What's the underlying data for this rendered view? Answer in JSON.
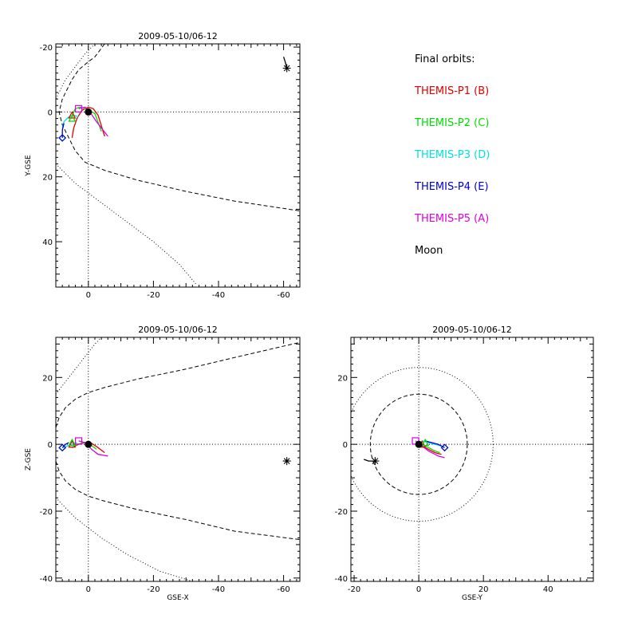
{
  "legend": {
    "title": "Final orbits:",
    "items": [
      {
        "label": "THEMIS-P1 (B)",
        "color": "#e00000"
      },
      {
        "label": "THEMIS-P2 (C)",
        "color": "#00dd00"
      },
      {
        "label": "THEMIS-P3 (D)",
        "color": "#00e0e0"
      },
      {
        "label": "THEMIS-P4 (E)",
        "color": "#0000cc"
      },
      {
        "label": "THEMIS-P5 (A)",
        "color": "#dd00dd"
      },
      {
        "label": "Moon",
        "color": "#000000"
      }
    ]
  },
  "chart_data": [
    {
      "id": "xy",
      "type": "line",
      "title": "2009-05-10/06-12",
      "xlabel": "",
      "ylabel": "Y-GSE",
      "xlim": [
        10,
        -65
      ],
      "ylim": [
        54,
        -21
      ],
      "xticks": [
        0,
        -20,
        -40,
        -60
      ],
      "yticks": [
        -20,
        0,
        20,
        40
      ],
      "origin_lines": true,
      "boundaries": [
        {
          "style": "dashed",
          "points": [
            [
              -5,
              -21
            ],
            [
              -2,
              -17
            ],
            [
              0,
              -15.5
            ],
            [
              3,
              -13
            ],
            [
              5,
              -10
            ],
            [
              7,
              -6
            ],
            [
              8,
              -4
            ],
            [
              9,
              0
            ],
            [
              8,
              4
            ],
            [
              6,
              8
            ],
            [
              4,
              12
            ],
            [
              1,
              15.5
            ],
            [
              -5,
              18
            ],
            [
              -15,
              21
            ],
            [
              -30,
              24.5
            ],
            [
              -45,
              27.5
            ],
            [
              -65,
              30.5
            ]
          ]
        },
        {
          "style": "dotted",
          "points": [
            [
              -2,
              -21
            ],
            [
              1,
              -18
            ],
            [
              4,
              -14
            ],
            [
              7,
              -10
            ],
            [
              9,
              -6
            ],
            [
              10,
              -4
            ]
          ]
        },
        {
          "style": "dotted",
          "points": [
            [
              10,
              16
            ],
            [
              4,
              22
            ],
            [
              -4,
              28
            ],
            [
              -12,
              34
            ],
            [
              -20,
              40
            ],
            [
              -28,
              47
            ],
            [
              -33,
              53
            ]
          ]
        }
      ],
      "orbits": [
        {
          "series": "THEMIS-P1 (B)",
          "color": "#e00000",
          "points": [
            [
              5,
              8
            ],
            [
              4.5,
              5
            ],
            [
              3.5,
              2
            ],
            [
              2,
              -0.5
            ],
            [
              0,
              -1.5
            ],
            [
              -1.5,
              -1
            ],
            [
              -3,
              1
            ],
            [
              -5,
              7.5
            ]
          ]
        },
        {
          "series": "THEMIS-P2 (C)",
          "color": "#00dd00",
          "points": [
            [
              5,
              1
            ],
            [
              4,
              -1
            ],
            [
              2.5,
              -1.5
            ],
            [
              1,
              -1
            ],
            [
              -2,
              0.5
            ],
            [
              -4,
              6
            ]
          ]
        },
        {
          "series": "THEMIS-P3 (D)",
          "color": "#00e0e0",
          "points": [
            [
              8,
              5
            ],
            [
              7.5,
              3
            ],
            [
              6,
              1.5
            ],
            [
              4.5,
              1
            ],
            [
              3,
              1.5
            ]
          ]
        },
        {
          "series": "THEMIS-P4 (E)",
          "color": "#0000cc",
          "points": [
            [
              8,
              8
            ],
            [
              8,
              5.5
            ],
            [
              7.5,
              3.5
            ]
          ]
        },
        {
          "series": "THEMIS-P5 (A)",
          "color": "#dd00dd",
          "points": [
            [
              3,
              -1
            ],
            [
              1,
              -1.5
            ],
            [
              -0.5,
              0
            ],
            [
              -2.5,
              3
            ],
            [
              -6,
              7.5
            ]
          ]
        }
      ],
      "markers": [
        {
          "series": "THEMIS-P1 (B)",
          "shape": "triangle",
          "color": "#e00000",
          "x": 5,
          "y": 1
        },
        {
          "series": "THEMIS-P2 (C)",
          "shape": "triangle",
          "color": "#00dd00",
          "x": 5,
          "y": 2
        },
        {
          "series": "THEMIS-P3 (D)",
          "shape": "diamond",
          "color": "#00e0e0",
          "x": 8,
          "y": 8
        },
        {
          "series": "THEMIS-P4 (E)",
          "shape": "diamond",
          "color": "#0000cc",
          "x": 8,
          "y": 8
        },
        {
          "series": "THEMIS-P5 (A)",
          "shape": "square",
          "color": "#dd00dd",
          "x": 3,
          "y": -1
        },
        {
          "series": "Earth",
          "shape": "earth",
          "color": "#000000",
          "x": 0,
          "y": 0
        },
        {
          "series": "Moon",
          "shape": "asterisk",
          "color": "#000000",
          "x": -61,
          "y": -13.5
        }
      ],
      "moon_track": [
        [
          -60,
          -17
        ],
        [
          -60.5,
          -15.5
        ],
        [
          -61,
          -13.5
        ]
      ]
    },
    {
      "id": "xz",
      "type": "line",
      "title": "2009-05-10/06-12",
      "xlabel": "GSE-X",
      "ylabel": "Z-GSE",
      "xlim": [
        10,
        -65
      ],
      "ylim": [
        -41,
        32
      ],
      "xticks": [
        0,
        -20,
        -40,
        -60
      ],
      "yticks": [
        -40,
        -20,
        0,
        20
      ],
      "origin_lines": true,
      "boundaries": [
        {
          "style": "dashed",
          "points": [
            [
              10,
              5
            ],
            [
              9,
              8
            ],
            [
              7,
              11
            ],
            [
              4,
              13.5
            ],
            [
              0,
              15.5
            ],
            [
              -5,
              17
            ],
            [
              -15,
              19.5
            ],
            [
              -30,
              22.5
            ],
            [
              -45,
              26
            ],
            [
              -65,
              30.5
            ]
          ]
        },
        {
          "style": "dotted",
          "points": [
            [
              10,
              15
            ],
            [
              6,
              20
            ],
            [
              2,
              25
            ],
            [
              -2,
              30
            ],
            [
              -4,
              32
            ]
          ]
        },
        {
          "style": "dashed",
          "points": [
            [
              10,
              -5
            ],
            [
              9,
              -8
            ],
            [
              7,
              -11
            ],
            [
              4,
              -13.5
            ],
            [
              0,
              -15.5
            ],
            [
              -5,
              -17
            ],
            [
              -15,
              -19.5
            ],
            [
              -30,
              -22.5
            ],
            [
              -45,
              -26
            ],
            [
              -65,
              -28.5
            ]
          ]
        },
        {
          "style": "dotted",
          "points": [
            [
              10,
              -16
            ],
            [
              4,
              -22
            ],
            [
              -4,
              -28
            ],
            [
              -12,
              -33
            ],
            [
              -22,
              -38
            ],
            [
              -32,
              -41
            ]
          ]
        }
      ],
      "orbits": [
        {
          "series": "THEMIS-P1 (B)",
          "color": "#e00000",
          "points": [
            [
              5,
              -1
            ],
            [
              3,
              0
            ],
            [
              1,
              0.5
            ],
            [
              -1,
              0.3
            ],
            [
              -3,
              -1
            ],
            [
              -5,
              -2.5
            ]
          ]
        },
        {
          "series": "THEMIS-P2 (C)",
          "color": "#00dd00",
          "points": [
            [
              5,
              -1
            ],
            [
              3.5,
              0
            ],
            [
              1.5,
              0.5
            ],
            [
              -0.5,
              0
            ],
            [
              -2.5,
              -1.5
            ]
          ]
        },
        {
          "series": "THEMIS-P3 (D)",
          "color": "#00e0e0",
          "points": [
            [
              8,
              -1
            ],
            [
              6.5,
              -0.5
            ],
            [
              5,
              0
            ],
            [
              3.5,
              0.5
            ]
          ]
        },
        {
          "series": "THEMIS-P4 (E)",
          "color": "#0000cc",
          "points": [
            [
              8,
              -1
            ],
            [
              7,
              0
            ],
            [
              6,
              0.5
            ]
          ]
        },
        {
          "series": "THEMIS-P5 (A)",
          "color": "#dd00dd",
          "points": [
            [
              3,
              1
            ],
            [
              1,
              0.5
            ],
            [
              -1,
              -1.5
            ],
            [
              -3,
              -3
            ],
            [
              -6,
              -3.5
            ]
          ]
        }
      ],
      "markers": [
        {
          "series": "THEMIS-P1 (B)",
          "shape": "triangle",
          "color": "#e00000",
          "x": 5,
          "y": 0
        },
        {
          "series": "THEMIS-P2 (C)",
          "shape": "triangle",
          "color": "#00dd00",
          "x": 5,
          "y": 0.5
        },
        {
          "series": "THEMIS-P3 (D)",
          "shape": "diamond",
          "color": "#00e0e0",
          "x": 8,
          "y": -1
        },
        {
          "series": "THEMIS-P4 (E)",
          "shape": "diamond",
          "color": "#0000cc",
          "x": 8,
          "y": -1
        },
        {
          "series": "THEMIS-P5 (A)",
          "shape": "square",
          "color": "#dd00dd",
          "x": 3,
          "y": 1
        },
        {
          "series": "Earth",
          "shape": "earth",
          "color": "#000000",
          "x": 0,
          "y": 0
        },
        {
          "series": "Moon",
          "shape": "asterisk",
          "color": "#000000",
          "x": -61,
          "y": -5
        }
      ],
      "moon_track": []
    },
    {
      "id": "yz",
      "type": "line",
      "title": "2009-05-10/06-12",
      "xlabel": "GSE-Y",
      "ylabel": "",
      "xlim": [
        -21,
        54
      ],
      "ylim": [
        -41,
        32
      ],
      "xticks": [
        -20,
        0,
        20,
        40
      ],
      "yticks": [
        -40,
        -20,
        0,
        20
      ],
      "origin_lines": true,
      "circles": [
        {
          "style": "dashed",
          "r": 15
        },
        {
          "style": "dotted",
          "r": 23
        }
      ],
      "orbits": [
        {
          "series": "THEMIS-P1 (B)",
          "color": "#e00000",
          "points": [
            [
              -1,
              0
            ],
            [
              1,
              -0.5
            ],
            [
              3,
              -1.5
            ],
            [
              5,
              -2.5
            ],
            [
              7,
              -3
            ]
          ]
        },
        {
          "series": "THEMIS-P2 (C)",
          "color": "#00dd00",
          "points": [
            [
              -1,
              0.5
            ],
            [
              1,
              0
            ],
            [
              3,
              -1
            ],
            [
              5,
              -2
            ],
            [
              6.5,
              -2.5
            ]
          ]
        },
        {
          "series": "THEMIS-P3 (D)",
          "color": "#00e0e0",
          "points": [
            [
              1,
              1
            ],
            [
              3,
              0.5
            ],
            [
              5,
              0
            ],
            [
              7,
              -0.5
            ],
            [
              8,
              -1
            ]
          ]
        },
        {
          "series": "THEMIS-P4 (E)",
          "color": "#0000cc",
          "points": [
            [
              2,
              1
            ],
            [
              4,
              0.5
            ],
            [
              6,
              0
            ],
            [
              8,
              -1
            ]
          ]
        },
        {
          "series": "THEMIS-P5 (A)",
          "color": "#dd00dd",
          "points": [
            [
              -1,
              1
            ],
            [
              1,
              -0.5
            ],
            [
              3,
              -2
            ],
            [
              6,
              -3.5
            ],
            [
              8,
              -4
            ]
          ]
        }
      ],
      "markers": [
        {
          "series": "THEMIS-P1 (B)",
          "shape": "triangle",
          "color": "#e00000",
          "x": 1,
          "y": 0
        },
        {
          "series": "THEMIS-P2 (C)",
          "shape": "triangle",
          "color": "#00dd00",
          "x": 2,
          "y": 0.5
        },
        {
          "series": "THEMIS-P3 (D)",
          "shape": "diamond",
          "color": "#00e0e0",
          "x": 8,
          "y": -1
        },
        {
          "series": "THEMIS-P4 (E)",
          "shape": "diamond",
          "color": "#0000cc",
          "x": 8,
          "y": -1
        },
        {
          "series": "THEMIS-P5 (A)",
          "shape": "square",
          "color": "#dd00dd",
          "x": -1,
          "y": 1
        },
        {
          "series": "Earth",
          "shape": "earth",
          "color": "#000000",
          "x": 0,
          "y": 0
        },
        {
          "series": "Moon",
          "shape": "asterisk",
          "color": "#000000",
          "x": -13.5,
          "y": -5
        }
      ],
      "moon_track": [
        [
          -17,
          -4.5
        ],
        [
          -15.5,
          -5
        ],
        [
          -13.5,
          -5
        ]
      ]
    }
  ]
}
